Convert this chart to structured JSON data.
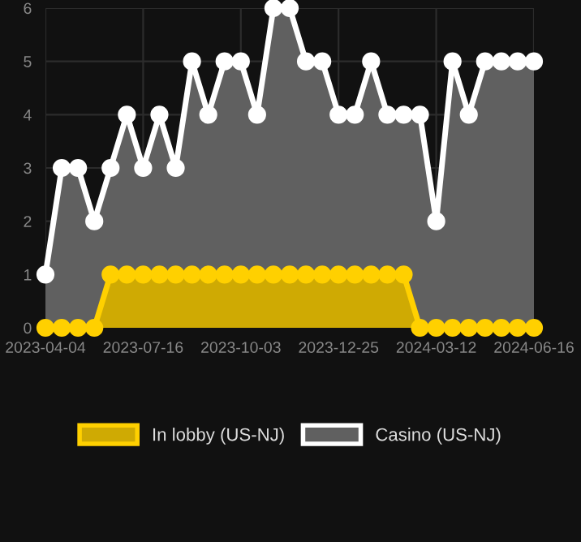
{
  "chart_data": {
    "type": "area",
    "categories": [
      "2023-04-04",
      null,
      null,
      null,
      null,
      null,
      "2023-07-16",
      null,
      null,
      null,
      null,
      null,
      "2023-10-03",
      null,
      null,
      null,
      null,
      null,
      "2023-12-25",
      null,
      null,
      null,
      null,
      null,
      "2024-03-12",
      null,
      null,
      null,
      null,
      null,
      "2024-06-16"
    ],
    "series": [
      {
        "name": "Casino (US-NJ)",
        "color": "#ffffff",
        "values": [
          1,
          3,
          3,
          2,
          3,
          4,
          3,
          4,
          3,
          5,
          4,
          5,
          5,
          4,
          6,
          6,
          5,
          5,
          4,
          4,
          5,
          4,
          4,
          4,
          2,
          5,
          4,
          5,
          5,
          5,
          5
        ]
      },
      {
        "name": "In lobby (US-NJ)",
        "color": "#ffd000",
        "values": [
          0,
          0,
          0,
          0,
          1,
          1,
          1,
          1,
          1,
          1,
          1,
          1,
          1,
          1,
          1,
          1,
          1,
          1,
          1,
          1,
          1,
          1,
          1,
          0,
          0,
          0,
          0,
          0,
          0,
          0,
          0
        ]
      }
    ],
    "ylim": [
      0,
      6
    ],
    "yticks": [
      0,
      1,
      2,
      3,
      4,
      5,
      6
    ],
    "grid": true,
    "legend": "bottom",
    "marker": "circle",
    "line_style": "solid"
  }
}
